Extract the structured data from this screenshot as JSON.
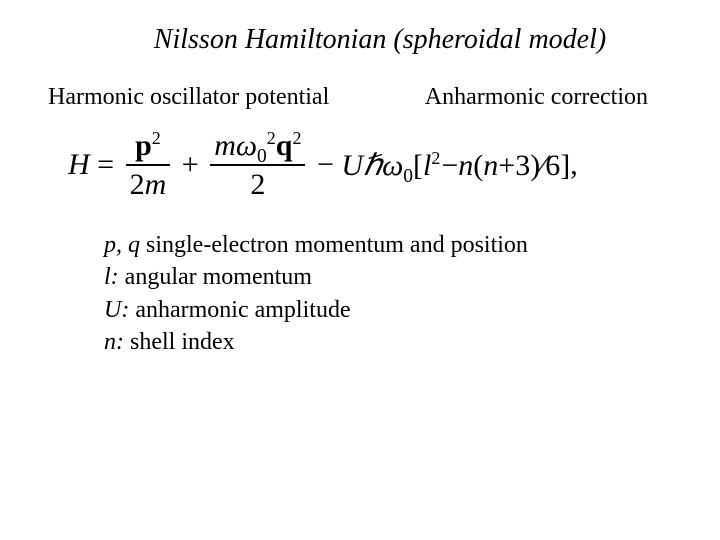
{
  "colors": {
    "bg": "#ffffff",
    "text": "#000000"
  },
  "font": {
    "family": "Times New Roman",
    "title_size": 28,
    "body_size": 24,
    "eq_size": 30
  },
  "title": "Nilsson Hamiltonian (spheroidal model)",
  "label_left": "Harmonic oscillator potential",
  "label_right": "Anharmonic correction",
  "equation": {
    "lhs": "H",
    "t1_num_a": "p",
    "t1_num_exp": "2",
    "t1_den_a": "2",
    "t1_den_b": "m",
    "t2_num_a": "m",
    "t2_num_b": "ω",
    "t2_num_b_sub": "0",
    "t2_num_b_sup": "2",
    "t2_num_c": "q",
    "t2_num_c_sup": "2",
    "t2_den": "2",
    "t3_pre": "Uℏω",
    "t3_sub": "0",
    "t3_br_open": "[",
    "t3_a": "l",
    "t3_a_sup": "2",
    "t3_minus": "−",
    "t3_b": "n",
    "t3_paren_open": "(",
    "t3_c": "n",
    "t3_plus": "+",
    "t3_d": "3",
    "t3_paren_close": ")",
    "t3_div": "∕",
    "t3_e": "6",
    "t3_br_close": "]",
    "tail": " ,"
  },
  "defs": {
    "line1_sym": "p, q",
    "line1_txt": " single-electron momentum and position",
    "line2_sym": "l:",
    "line2_txt": "  angular momentum",
    "line3_sym": "U:",
    "line3_txt": " anharmonic amplitude",
    "line4_sym": "n:",
    "line4_txt": " shell index"
  }
}
